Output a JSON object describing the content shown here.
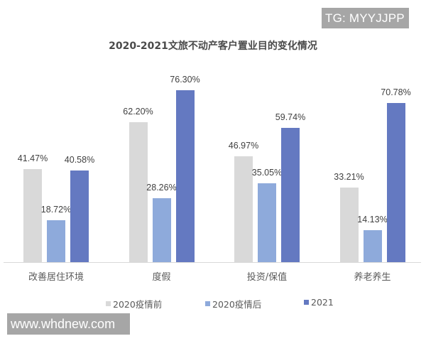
{
  "watermarks": {
    "top_right": "TG: MYYJJPP",
    "bottom_left": "www.whdnew.com"
  },
  "chart_data": {
    "type": "bar",
    "title": "2020-2021文旅不动产客户置业目的变化情况",
    "categories": [
      "改善居住环境",
      "度假",
      "投资/保值",
      "养老养生"
    ],
    "series": [
      {
        "name": "2020疫情前",
        "color": "#d9d9d9",
        "values": [
          41.47,
          62.2,
          46.97,
          33.21
        ],
        "labels": [
          "41.47%",
          "62.20%",
          "46.97%",
          "33.21%"
        ]
      },
      {
        "name": "2020疫情后",
        "color": "#8eaadb",
        "values": [
          18.72,
          28.26,
          35.05,
          14.13
        ],
        "labels": [
          "18.72%",
          "28.26%",
          "35.05%",
          "14.13%"
        ]
      },
      {
        "name": "2021",
        "color": "#6479c1",
        "values": [
          40.58,
          76.3,
          59.74,
          70.78
        ],
        "labels": [
          "40.58%",
          "76.30%",
          "59.74%",
          "70.78%"
        ]
      }
    ],
    "xlabel": "",
    "ylabel": "",
    "ylim": [
      0,
      100
    ],
    "unit": "%",
    "grid": false,
    "legend_position": "bottom"
  }
}
